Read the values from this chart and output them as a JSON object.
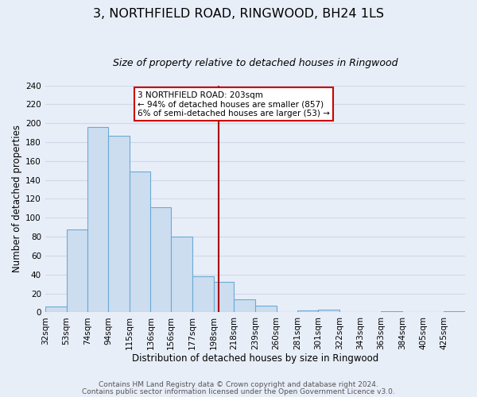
{
  "title": "3, NORTHFIELD ROAD, RINGWOOD, BH24 1LS",
  "subtitle": "Size of property relative to detached houses in Ringwood",
  "xlabel": "Distribution of detached houses by size in Ringwood",
  "ylabel": "Number of detached properties",
  "bar_edges": [
    32,
    53,
    74,
    94,
    115,
    136,
    156,
    177,
    198,
    218,
    239,
    260,
    281,
    301,
    322,
    343,
    363,
    384,
    405,
    425,
    446
  ],
  "bar_heights": [
    6,
    88,
    196,
    187,
    149,
    111,
    80,
    38,
    32,
    14,
    7,
    0,
    2,
    3,
    0,
    0,
    1,
    0,
    0,
    1
  ],
  "bar_color": "#ccddf0",
  "bar_edge_color": "#6aaad4",
  "ylim": [
    0,
    240
  ],
  "yticks": [
    0,
    20,
    40,
    60,
    80,
    100,
    120,
    140,
    160,
    180,
    200,
    220,
    240
  ],
  "vline_x": 203,
  "vline_color": "#aa0000",
  "annotation_title": "3 NORTHFIELD ROAD: 203sqm",
  "annotation_line1": "← 94% of detached houses are smaller (857)",
  "annotation_line2": "6% of semi-detached houses are larger (53) →",
  "footer_line1": "Contains HM Land Registry data © Crown copyright and database right 2024.",
  "footer_line2": "Contains public sector information licensed under the Open Government Licence v3.0.",
  "background_color": "#e8eef8",
  "grid_color": "#d0d8e8",
  "title_fontsize": 11.5,
  "subtitle_fontsize": 9,
  "xlabel_fontsize": 8.5,
  "ylabel_fontsize": 8.5,
  "tick_fontsize": 7.5,
  "footer_fontsize": 6.5
}
